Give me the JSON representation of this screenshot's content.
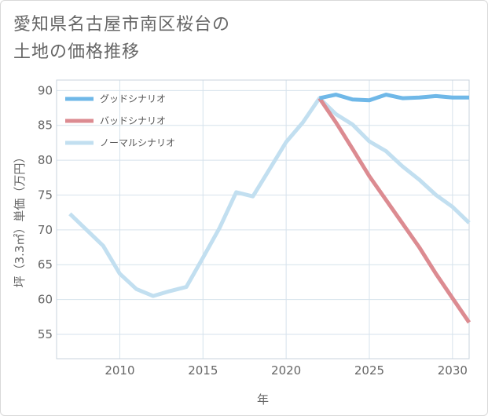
{
  "title": {
    "line1": "愛知県名古屋市南区桜台の",
    "line2": "土地の価格推移"
  },
  "chart_data": {
    "type": "line",
    "xlabel": "年",
    "ylabel": "坪（3.3㎡）単価（万円）",
    "xlim": [
      2006.2,
      2031
    ],
    "ylim": [
      51.5,
      91.5
    ],
    "xticks": [
      2010,
      2015,
      2020,
      2025,
      2030
    ],
    "yticks": [
      55,
      60,
      65,
      70,
      75,
      80,
      85,
      90
    ],
    "grid": true,
    "legend_position": "top-left",
    "series": [
      {
        "name": "グッドシナリオ",
        "color": "#6fb8e8",
        "x": [
          2022,
          2023,
          2024,
          2025,
          2026,
          2027,
          2028,
          2029,
          2030,
          2031
        ],
        "y": [
          88.9,
          89.4,
          88.7,
          88.6,
          89.4,
          88.9,
          89.0,
          89.2,
          89.0,
          89.0
        ]
      },
      {
        "name": "バッドシナリオ",
        "color": "#dc8b91",
        "x": [
          2022,
          2023,
          2024,
          2025,
          2026,
          2027,
          2028,
          2029,
          2030,
          2031
        ],
        "y": [
          88.9,
          85.4,
          81.6,
          77.7,
          74.3,
          70.9,
          67.5,
          63.7,
          60.2,
          56.7
        ]
      },
      {
        "name": "ノーマルシナリオ",
        "color": "#c2dff0",
        "x": [
          2007,
          2008,
          2009,
          2010,
          2011,
          2012,
          2013,
          2014,
          2015,
          2016,
          2017,
          2018,
          2019,
          2020,
          2021,
          2022,
          2023,
          2024,
          2025,
          2026,
          2027,
          2028,
          2029,
          2030,
          2031
        ],
        "y": [
          72.3,
          70.0,
          67.7,
          63.7,
          61.5,
          60.5,
          61.2,
          61.8,
          66.0,
          70.3,
          75.4,
          74.8,
          78.7,
          82.6,
          85.4,
          88.9,
          86.6,
          85.1,
          82.7,
          81.3,
          79.1,
          77.2,
          75.0,
          73.3,
          71.0
        ]
      }
    ]
  }
}
